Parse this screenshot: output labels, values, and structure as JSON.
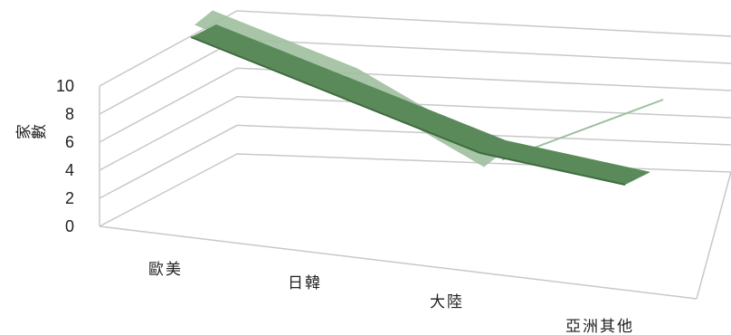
{
  "chart_data": {
    "type": "line",
    "view": "3d",
    "categories": [
      "歐美",
      "日韓",
      "大陸",
      "亞洲其他"
    ],
    "ylabel": "家數",
    "xlabel": "",
    "ylim": [
      0,
      10
    ],
    "yticks": [
      "0",
      "2",
      "4",
      "6",
      "8",
      "10"
    ],
    "grid": true,
    "series": [
      {
        "values": [
          8,
          6,
          4,
          4
        ],
        "color": "#5a8a5a",
        "style": "ribbon"
      },
      {
        "values": [
          9,
          7,
          3,
          10
        ],
        "color": "#9ebf9e",
        "style": "ribbon-fading"
      }
    ]
  }
}
